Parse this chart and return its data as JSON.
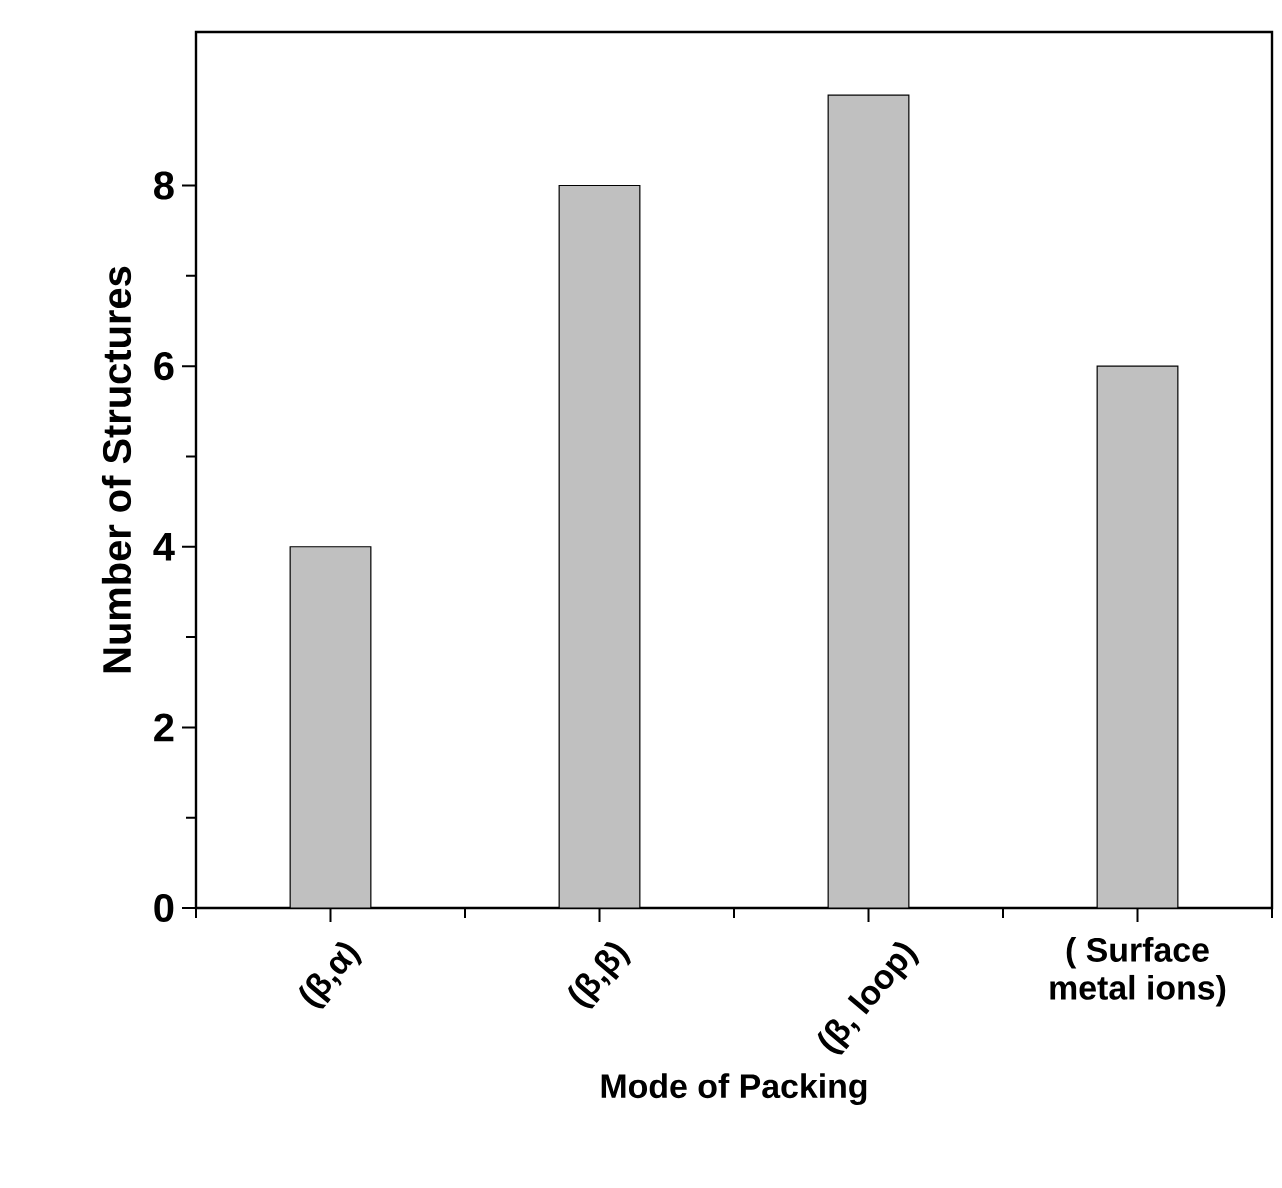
{
  "chart_data": {
    "type": "bar",
    "categories": [
      "(β,α)",
      "(β,β)",
      "(β, loop)",
      "( Surface metal ions)"
    ],
    "values": [
      4,
      8,
      9,
      6
    ],
    "color": "#c0c0c0",
    "xlabel": "Mode of Packing",
    "ylabel": "Number of Structures",
    "ylim": [
      0,
      9.7
    ],
    "yticks": [
      0,
      2,
      4,
      6,
      8
    ],
    "grid": false,
    "legend": false
  }
}
